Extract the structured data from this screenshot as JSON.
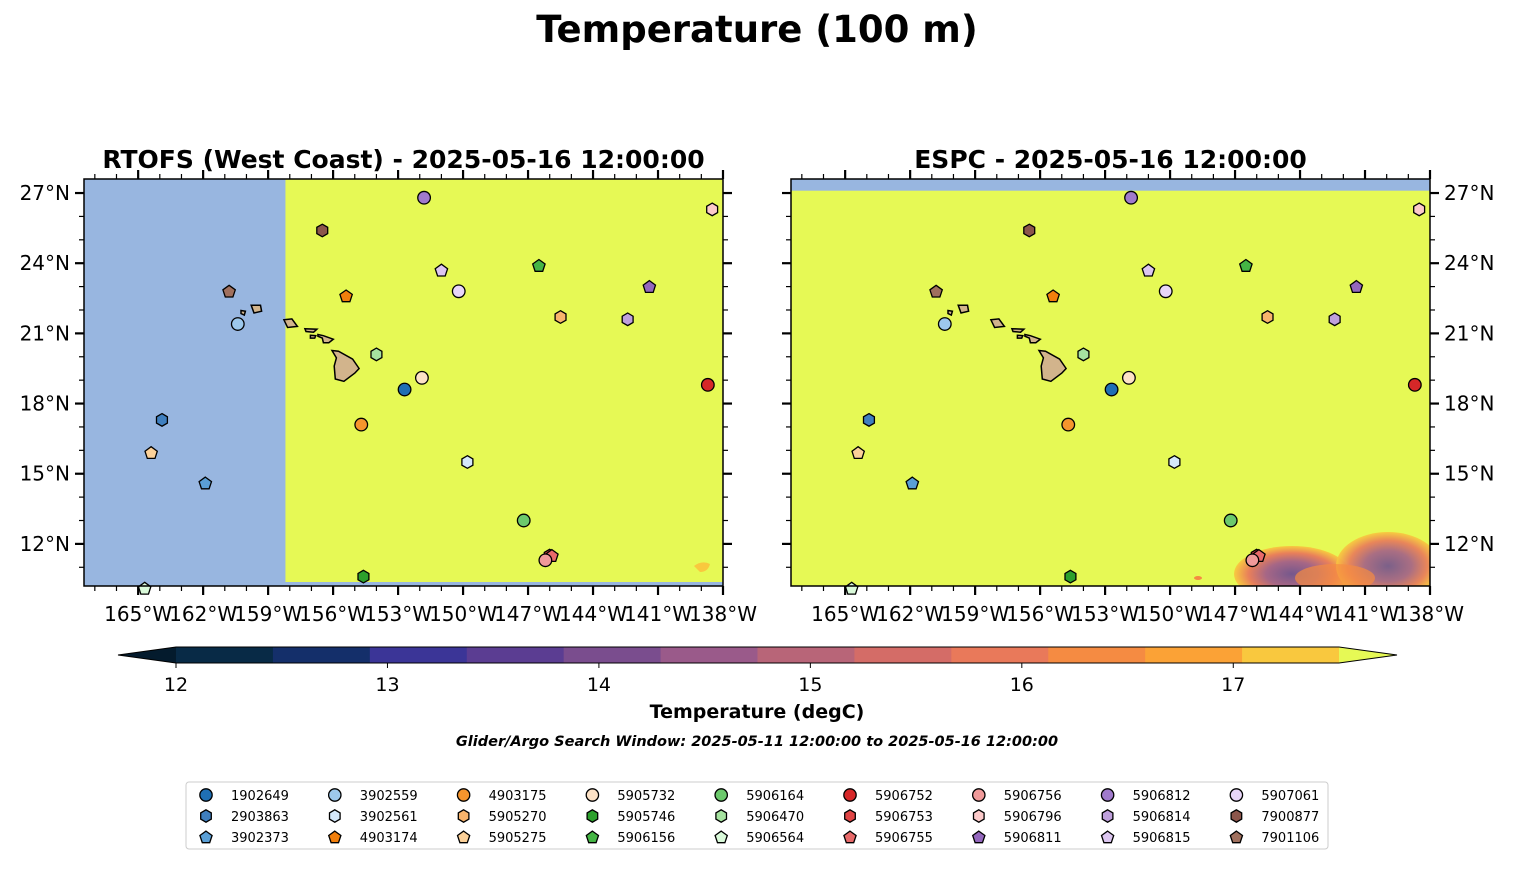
{
  "figure": {
    "title": "Temperature (100 m)",
    "footnote": "Glider/Argo Search Window: 2025-05-11 12:00:00 to 2025-05-16 12:00:00"
  },
  "colors": {
    "land": "#d2b48c",
    "nodata": "#98b6e0",
    "warm_fill": "#e6f955"
  },
  "chart_data": [
    {
      "type": "heatmap",
      "title": "RTOFS (West Coast) - 2025-05-16 12:00:00",
      "xlim": [
        -167.5,
        -138
      ],
      "ylim": [
        10.2,
        27.6
      ],
      "x_ticks": [
        "165°W",
        "162°W",
        "159°W",
        "156°W",
        "153°W",
        "150°W",
        "147°W",
        "144°W",
        "141°W",
        "138°W"
      ],
      "x_tick_values": [
        -165,
        -162,
        -159,
        -156,
        -153,
        -150,
        -147,
        -144,
        -141,
        -138
      ],
      "y_ticks": [
        "12°N",
        "15°N",
        "18°N",
        "21°N",
        "24°N",
        "27°N"
      ],
      "y_tick_values": [
        12,
        15,
        18,
        21,
        24,
        27
      ],
      "y_tick_side": "left",
      "fill_description": "model domain begins at 158.2°W; values above 17.5 degC everywhere east of it",
      "domain_west_edge_lon": -158.2,
      "field_value": "above 17.5"
    },
    {
      "type": "heatmap",
      "title": "ESPC - 2025-05-16 12:00:00",
      "xlim": [
        -167.5,
        -138
      ],
      "ylim": [
        10.2,
        27.6
      ],
      "x_ticks": [
        "165°W",
        "162°W",
        "159°W",
        "156°W",
        "153°W",
        "150°W",
        "147°W",
        "144°W",
        "141°W",
        "138°W"
      ],
      "x_tick_values": [
        -165,
        -162,
        -159,
        -156,
        -153,
        -150,
        -147,
        -144,
        -141,
        -138
      ],
      "y_ticks": [
        "12°N",
        "15°N",
        "18°N",
        "21°N",
        "24°N",
        "27°N"
      ],
      "y_tick_values": [
        12,
        15,
        18,
        21,
        24,
        27
      ],
      "y_tick_side": "right",
      "domain_north_edge_lat": 27.1,
      "field_value": "above 17.5; cooler patch 13.5-17 degC in SE corner near 10-12°N, 146-138°W"
    }
  ],
  "colorbar": {
    "label": "Temperature (degC)",
    "min": 12,
    "max": 17.5,
    "extend": "both",
    "tick_values": [
      12,
      13,
      14,
      15,
      16,
      17
    ],
    "tick_labels": [
      "12",
      "13",
      "14",
      "15",
      "16",
      "17"
    ],
    "bin_colors": [
      "#082a46",
      "#142f6a",
      "#3b3597",
      "#5b3d92",
      "#7a4d8e",
      "#9a5a8a",
      "#b86578",
      "#d46c67",
      "#e9795a",
      "#f58b42",
      "#fba236",
      "#f9c83e"
    ],
    "under_color": "#041b2d",
    "over_color": "#e6f955"
  },
  "profiles": [
    {
      "id": "1902649",
      "marker": "circle",
      "color": "#1f6fb4",
      "lon": -152.7,
      "lat": 18.6
    },
    {
      "id": "2903863",
      "marker": "hexagon",
      "color": "#3f7fbf",
      "lon": -163.9,
      "lat": 17.3
    },
    {
      "id": "3902373",
      "marker": "pentagon",
      "color": "#5a9fd6",
      "lon": -161.9,
      "lat": 14.6
    },
    {
      "id": "3902559",
      "marker": "circle",
      "color": "#9dc8ec",
      "lon": -160.4,
      "lat": 21.4
    },
    {
      "id": "3902561",
      "marker": "hexagon",
      "color": "#d5e8fa",
      "lon": -149.8,
      "lat": 15.5
    },
    {
      "id": "4903174",
      "marker": "pentagon",
      "color": "#f27f0c",
      "lon": -155.4,
      "lat": 22.6
    },
    {
      "id": "4903175",
      "marker": "circle",
      "color": "#f6952d",
      "lon": -154.7,
      "lat": 17.1
    },
    {
      "id": "5905270",
      "marker": "hexagon",
      "color": "#f8b46c",
      "lon": -145.5,
      "lat": 21.7
    },
    {
      "id": "5905275",
      "marker": "pentagon",
      "color": "#fcd199",
      "lon": -164.4,
      "lat": 15.9
    },
    {
      "id": "5905732",
      "marker": "circle",
      "color": "#fde2c6",
      "lon": -151.9,
      "lat": 19.1
    },
    {
      "id": "5905746",
      "marker": "hexagon",
      "color": "#2ca02c",
      "lon": -154.6,
      "lat": 10.6
    },
    {
      "id": "5906156",
      "marker": "pentagon",
      "color": "#45b545",
      "lon": -146.5,
      "lat": 23.9
    },
    {
      "id": "5906164",
      "marker": "circle",
      "color": "#6cc96c",
      "lon": -147.2,
      "lat": 13.0
    },
    {
      "id": "5906470",
      "marker": "hexagon",
      "color": "#a6e3a0",
      "lon": -154.0,
      "lat": 20.1
    },
    {
      "id": "5906564",
      "marker": "pentagon",
      "color": "#dafada",
      "lon": -164.7,
      "lat": 10.1
    },
    {
      "id": "5906752",
      "marker": "circle",
      "color": "#d62728",
      "lon": -138.7,
      "lat": 18.8
    },
    {
      "id": "5906753",
      "marker": "hexagon",
      "color": "#e04545",
      "lon": -146.0,
      "lat": 11.5
    },
    {
      "id": "5906755",
      "marker": "pentagon",
      "color": "#e86a6a",
      "lon": -145.9,
      "lat": 11.5
    },
    {
      "id": "5906756",
      "marker": "circle",
      "color": "#f09a9a",
      "lon": -146.2,
      "lat": 11.3
    },
    {
      "id": "5906796",
      "marker": "hexagon",
      "color": "#fccaca",
      "lon": -138.5,
      "lat": 26.3
    },
    {
      "id": "5906811",
      "marker": "pentagon",
      "color": "#9467bd",
      "lon": -141.4,
      "lat": 23.0
    },
    {
      "id": "5906812",
      "marker": "circle",
      "color": "#a07acc",
      "lon": -151.8,
      "lat": 26.8
    },
    {
      "id": "5906814",
      "marker": "hexagon",
      "color": "#bfa0dc",
      "lon": -142.4,
      "lat": 21.6
    },
    {
      "id": "5906815",
      "marker": "pentagon",
      "color": "#dcc6f0",
      "lon": -151.0,
      "lat": 23.7
    },
    {
      "id": "5907061",
      "marker": "circle",
      "color": "#e8d6f8",
      "lon": -150.2,
      "lat": 22.8
    },
    {
      "id": "7900877",
      "marker": "hexagon",
      "color": "#8c564b",
      "lon": -156.5,
      "lat": 25.4
    },
    {
      "id": "7901106",
      "marker": "pentagon",
      "color": "#a0705e",
      "lon": -160.8,
      "lat": 22.8
    }
  ]
}
